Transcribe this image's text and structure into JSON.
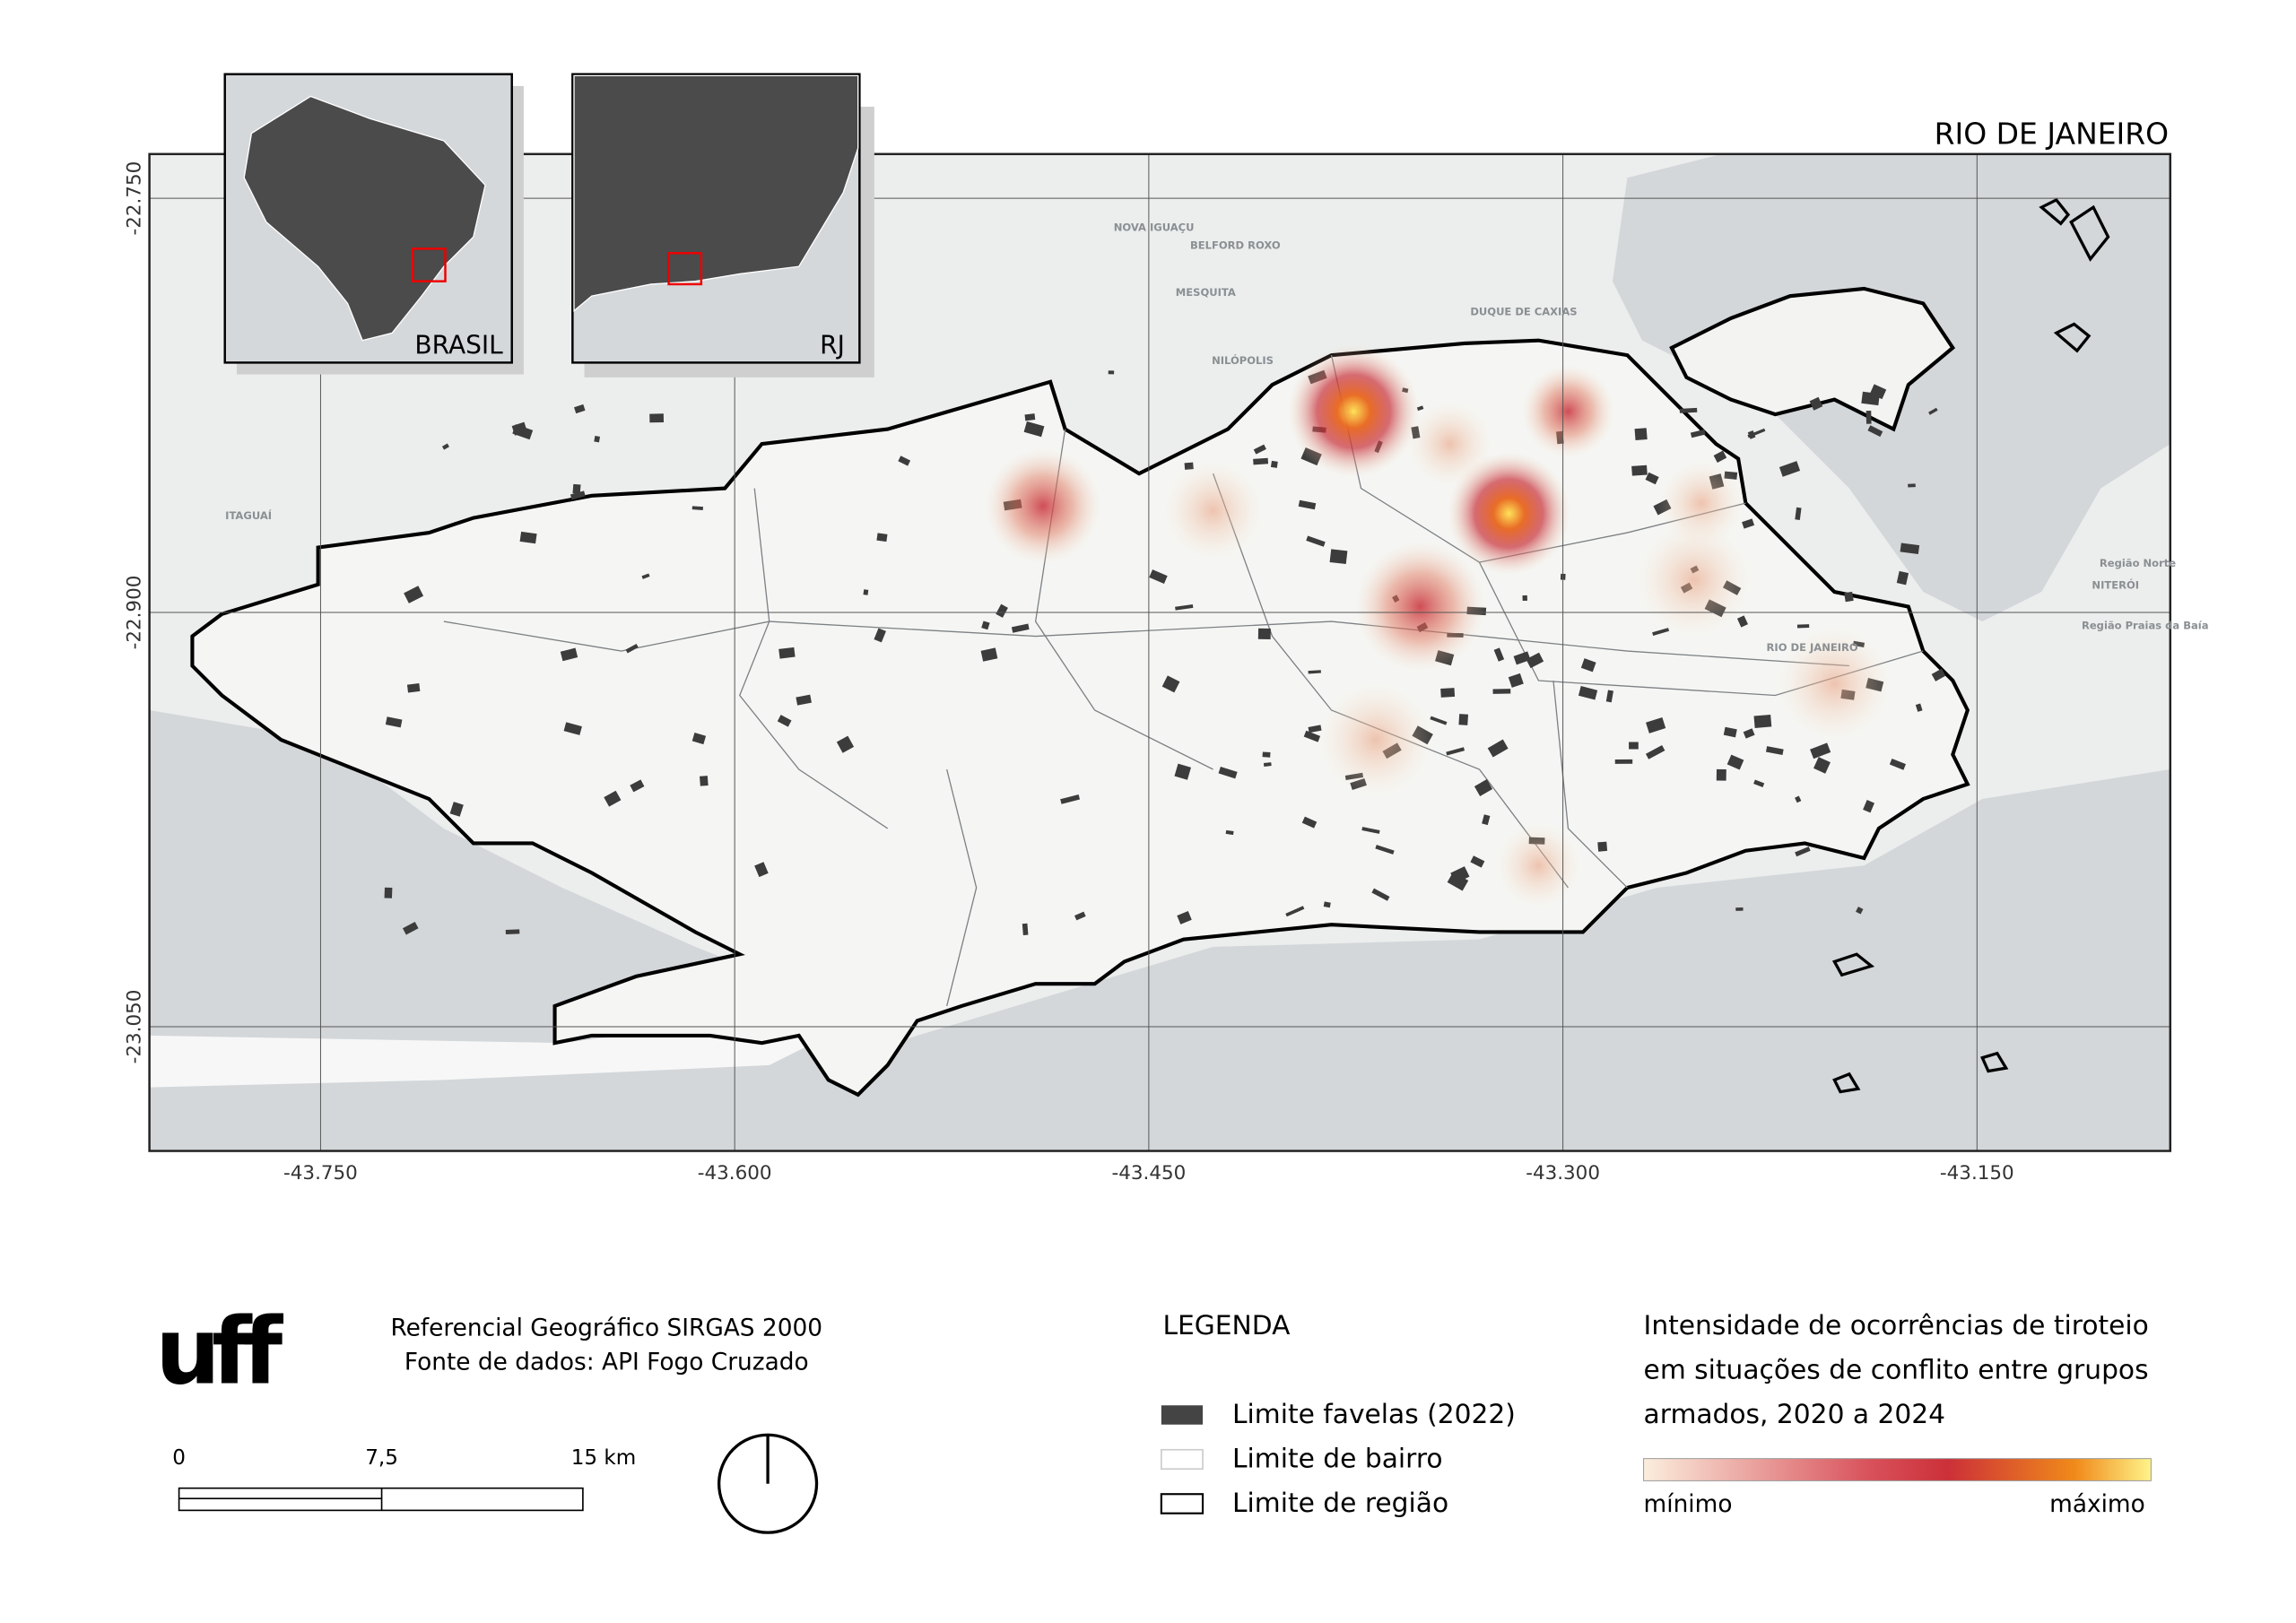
{
  "title": "RIO DE JANEIRO",
  "insets": [
    {
      "label": "BRASIL"
    },
    {
      "label": "RJ"
    }
  ],
  "map": {
    "xlim": [
      -43.812,
      -43.08
    ],
    "ylim": [
      -23.095,
      -22.734
    ],
    "xticks": [
      {
        "value": -43.75,
        "label": "-43.750"
      },
      {
        "value": -43.6,
        "label": "-43.600"
      },
      {
        "value": -43.45,
        "label": "-43.450"
      },
      {
        "value": -43.3,
        "label": "-43.300"
      },
      {
        "value": -43.15,
        "label": "-43.150"
      }
    ],
    "yticks": [
      {
        "value": -22.75,
        "label": "-22.750"
      },
      {
        "value": -22.9,
        "label": "-22.900"
      },
      {
        "value": -23.05,
        "label": "-23.050"
      }
    ],
    "grid": true,
    "place_labels": [
      "NOVA IGUAÇU",
      "BELFORD ROXO",
      "MESQUITA",
      "DUQUE DE CAXIAS",
      "NILÓPOLIS",
      "ITAGUAÍ",
      "NITERÓI",
      "RIO DE JANEIRO",
      "Região Norte",
      "Região Praias da Baía"
    ]
  },
  "logo": "uff",
  "credits": [
    "Referencial Geográfico SIRGAS 2000",
    "Fonte de dados: API Fogo Cruzado"
  ],
  "scale_bar": {
    "labels": [
      "0",
      "7,5",
      "15 km"
    ]
  },
  "legend": {
    "title": "LEGENDA",
    "items": [
      "Limite favelas (2022)",
      "Limite de bairro",
      "Limite de região"
    ]
  },
  "heat_legend": {
    "title_lines": [
      "Intensidade de ocorrências de tiroteio",
      "em situações de conflito entre grupos",
      "armados, 2020 a 2024"
    ],
    "min_label": "mínimo",
    "max_label": "máximo"
  }
}
